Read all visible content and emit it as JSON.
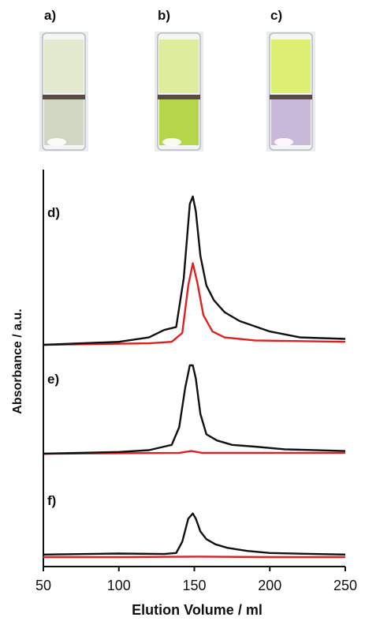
{
  "photos": {
    "labels": [
      "a)",
      "b)",
      "c)"
    ],
    "vial_colors": [
      {
        "liquid": "#cfd6c2",
        "upper": "#dfe7c8"
      },
      {
        "liquid": "#b6d64a",
        "upper": "#d9ea8e"
      },
      {
        "liquid": "#c9b9d8",
        "upper": "#d8ec5c"
      }
    ]
  },
  "chart_data": {
    "type": "line",
    "xlabel": "Elution Volume / ml",
    "ylabel": "Absorbance / a.u.",
    "xlim": [
      50,
      250
    ],
    "xticks": [
      50,
      100,
      150,
      200,
      250
    ],
    "grid": false,
    "series_colors": {
      "black": "#111111",
      "red": "#e02020"
    },
    "panels": [
      {
        "label": "d)",
        "series": [
          {
            "color": "black",
            "x": [
              50,
              100,
              120,
              130,
              138,
              143,
              147,
              149,
              151,
              154,
              158,
              163,
              170,
              180,
              200,
              220,
              250
            ],
            "y": [
              0.0,
              0.02,
              0.05,
              0.1,
              0.12,
              0.45,
              0.95,
              1.0,
              0.9,
              0.6,
              0.4,
              0.3,
              0.22,
              0.16,
              0.09,
              0.05,
              0.04
            ]
          },
          {
            "color": "red",
            "x": [
              50,
              120,
              135,
              142,
              146,
              149,
              152,
              156,
              162,
              170,
              190,
              250
            ],
            "y": [
              0.0,
              0.01,
              0.02,
              0.08,
              0.4,
              0.55,
              0.42,
              0.2,
              0.09,
              0.05,
              0.03,
              0.02
            ]
          }
        ]
      },
      {
        "label": "e)",
        "series": [
          {
            "color": "black",
            "x": [
              50,
              100,
              120,
              130,
              135,
              140,
              144,
              147,
              149,
              151,
              154,
              158,
              165,
              175,
              190,
              210,
              250
            ],
            "y": [
              0.0,
              0.02,
              0.04,
              0.08,
              0.1,
              0.3,
              0.75,
              1.0,
              1.0,
              0.85,
              0.45,
              0.22,
              0.15,
              0.1,
              0.08,
              0.05,
              0.03
            ]
          },
          {
            "color": "red",
            "x": [
              50,
              140,
              148,
              155,
              250
            ],
            "y": [
              0.0,
              0.01,
              0.03,
              0.01,
              0.01
            ]
          }
        ]
      },
      {
        "label": "f)",
        "series": [
          {
            "color": "black",
            "x": [
              50,
              100,
              130,
              138,
              142,
              146,
              149,
              151,
              154,
              158,
              164,
              172,
              185,
              200,
              230,
              250
            ],
            "y": [
              0.05,
              0.07,
              0.06,
              0.08,
              0.3,
              0.75,
              0.85,
              0.75,
              0.5,
              0.35,
              0.25,
              0.18,
              0.12,
              0.08,
              0.06,
              0.05
            ]
          },
          {
            "color": "red",
            "x": [
              50,
              100,
              150,
              200,
              250
            ],
            "y": [
              0.0,
              0.0,
              0.01,
              0.0,
              0.0
            ]
          }
        ]
      }
    ]
  }
}
